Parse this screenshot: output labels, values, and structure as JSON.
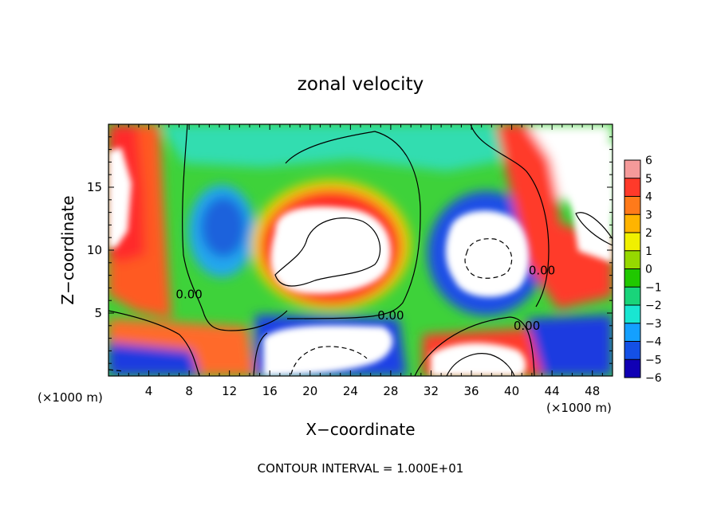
{
  "chart_data": {
    "type": "heatmap",
    "title": "zonal velocity",
    "xlabel": "X−coordinate",
    "ylabel": "Z−coordinate",
    "x_unit_left": "(×1000 m)",
    "x_unit_right": "(×1000 m)",
    "xlim": [
      0,
      50
    ],
    "ylim": [
      0,
      20
    ],
    "xticks": [
      4,
      8,
      12,
      16,
      20,
      24,
      28,
      32,
      36,
      40,
      44,
      48
    ],
    "yticks": [
      5,
      10,
      15
    ],
    "footer": "CONTOUR INTERVAL = 1.000E+01",
    "colorbar": {
      "levels": [
        6,
        5,
        4,
        3,
        2,
        1,
        0,
        -1,
        -2,
        -3,
        -4,
        -5,
        -6
      ],
      "labels": [
        "6",
        "5",
        "4",
        "3",
        "2",
        "1",
        "0",
        "−1",
        "−2",
        "−3",
        "−4",
        "−5",
        "−6"
      ],
      "colors": [
        "#f59a9a",
        "#ff3a2a",
        "#ff7a1a",
        "#ffb400",
        "#f0f000",
        "#96d800",
        "#20c800",
        "#19d47a",
        "#19e6d2",
        "#14a0ff",
        "#1450e6",
        "#1000b4",
        "#6400a0"
      ],
      "above_max_color": "#ffffff",
      "below_min_color": "#ffffff"
    },
    "contour_labels": [
      {
        "text": "0.00",
        "x": 28.0,
        "z": 4.8
      },
      {
        "text": "0.00",
        "x": 8.0,
        "z": 6.5
      },
      {
        "text": "0.00",
        "x": 43.0,
        "z": 8.4
      },
      {
        "text": "0.00",
        "x": 41.5,
        "z": 4.0
      }
    ],
    "features": [
      {
        "kind": "positive core (>6)",
        "x_center": 24,
        "z_center": 9.5
      },
      {
        "kind": "negative core (<-6)",
        "x_center": 36.5,
        "z_center": 9.5
      },
      {
        "kind": "negative core",
        "x_center": 11,
        "z_center": 12.5
      },
      {
        "kind": "positive band",
        "x_range": [
          0,
          8
        ],
        "z_range": [
          5,
          20
        ]
      },
      {
        "kind": "positive band",
        "x_range": [
          40,
          45
        ],
        "z_range": [
          6,
          20
        ]
      }
    ]
  }
}
